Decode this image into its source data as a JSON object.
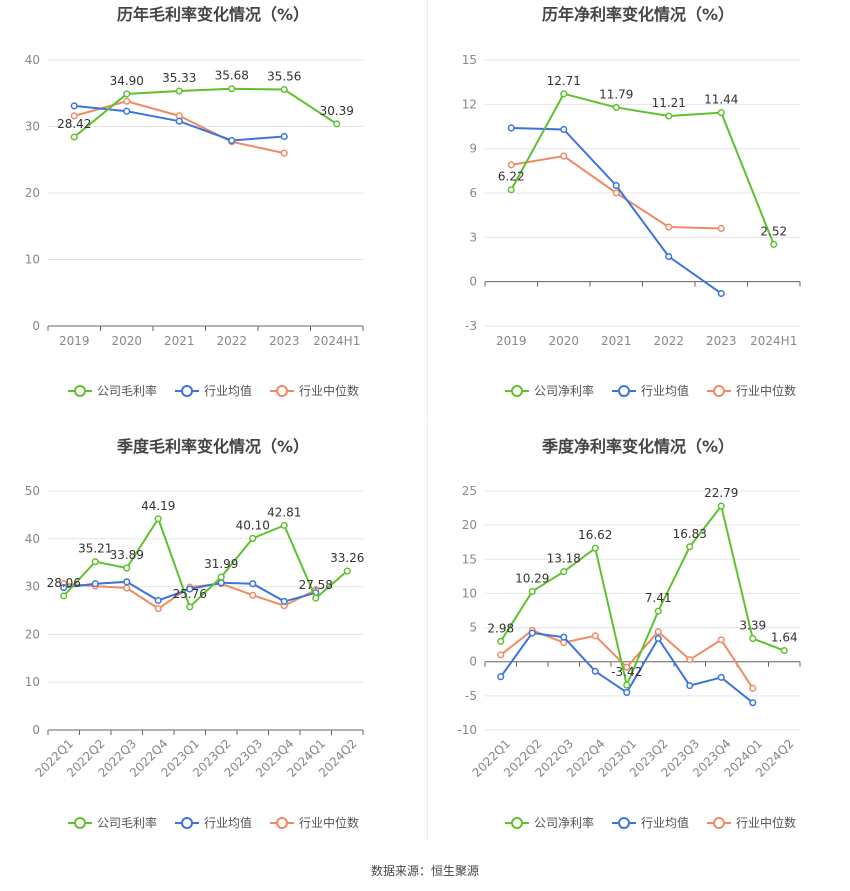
{
  "source": "数据来源：恒生聚源",
  "colors": {
    "company": "#5ec12f",
    "avg": "#3b74dc",
    "median": "#f08a63",
    "grid": "#e5e5e5",
    "axis": "#888888",
    "label": "#333333",
    "title": "#444444"
  },
  "chart_data": [
    {
      "type": "line",
      "title": "历年毛利率变化情况（%）",
      "categories": [
        "2019",
        "2020",
        "2021",
        "2022",
        "2023",
        "2024H1"
      ],
      "ylim": [
        0,
        40
      ],
      "yticks": [
        0,
        10,
        20,
        30,
        40
      ],
      "legend_position": "bottom",
      "grid": true,
      "series": [
        {
          "name": "公司毛利率",
          "values": [
            28.42,
            34.9,
            35.33,
            35.68,
            35.56,
            30.39
          ],
          "labels": true
        },
        {
          "name": "行业均值",
          "values": [
            33.1,
            32.3,
            30.8,
            27.9,
            28.5,
            null
          ],
          "labels": false
        },
        {
          "name": "行业中位数",
          "values": [
            31.6,
            33.8,
            31.6,
            27.7,
            26.0,
            null
          ],
          "labels": false
        }
      ]
    },
    {
      "type": "line",
      "title": "历年净利率变化情况（%）",
      "categories": [
        "2019",
        "2020",
        "2021",
        "2022",
        "2023",
        "2024H1"
      ],
      "ylim": [
        -3,
        15
      ],
      "yticks": [
        -3,
        0,
        3,
        6,
        9,
        12,
        15
      ],
      "legend_position": "bottom",
      "grid": true,
      "series": [
        {
          "name": "公司净利率",
          "values": [
            6.22,
            12.71,
            11.79,
            11.21,
            11.44,
            2.52
          ],
          "labels": true
        },
        {
          "name": "行业均值",
          "values": [
            10.4,
            10.3,
            6.5,
            1.7,
            -0.8,
            null
          ],
          "labels": false
        },
        {
          "name": "行业中位数",
          "values": [
            7.9,
            8.5,
            6.0,
            3.7,
            3.6,
            null
          ],
          "labels": false
        }
      ]
    },
    {
      "type": "line",
      "title": "季度毛利率变化情况（%）",
      "categories": [
        "2022Q1",
        "2022Q2",
        "2022Q3",
        "2022Q4",
        "2023Q1",
        "2023Q2",
        "2023Q3",
        "2023Q4",
        "2024Q1",
        "2024Q2"
      ],
      "ylim": [
        0,
        50
      ],
      "yticks": [
        0,
        10,
        20,
        30,
        40,
        50
      ],
      "legend_position": "bottom",
      "grid": true,
      "series": [
        {
          "name": "公司毛利率",
          "values": [
            28.06,
            35.21,
            33.89,
            44.19,
            25.76,
            31.99,
            40.1,
            42.81,
            27.58,
            33.26
          ],
          "labels": true
        },
        {
          "name": "行业均值",
          "values": [
            29.8,
            30.6,
            31.0,
            27.1,
            29.5,
            30.8,
            30.6,
            26.9,
            28.7,
            null
          ],
          "labels": false
        },
        {
          "name": "行业中位数",
          "values": [
            30.6,
            30.1,
            29.7,
            25.4,
            29.9,
            30.6,
            28.2,
            26.0,
            29.3,
            null
          ],
          "labels": false
        }
      ]
    },
    {
      "type": "line",
      "title": "季度净利率变化情况（%）",
      "categories": [
        "2022Q1",
        "2022Q2",
        "2022Q3",
        "2022Q4",
        "2023Q1",
        "2023Q2",
        "2023Q3",
        "2023Q4",
        "2024Q1",
        "2024Q2"
      ],
      "ylim": [
        -10,
        25
      ],
      "yticks": [
        -10,
        -5,
        0,
        5,
        10,
        15,
        20,
        25
      ],
      "legend_position": "bottom",
      "grid": true,
      "series": [
        {
          "name": "公司净利率",
          "values": [
            2.98,
            10.29,
            13.18,
            16.62,
            -3.42,
            7.41,
            16.83,
            22.79,
            3.39,
            1.64
          ],
          "labels": true
        },
        {
          "name": "行业均值",
          "values": [
            -2.2,
            4.2,
            3.6,
            -1.4,
            -4.5,
            3.4,
            -3.5,
            -2.3,
            -6.0,
            null
          ],
          "labels": false
        },
        {
          "name": "行业中位数",
          "values": [
            1.0,
            4.6,
            2.8,
            3.8,
            -0.8,
            4.4,
            0.3,
            3.2,
            -3.9,
            null
          ],
          "labels": false
        }
      ]
    }
  ]
}
